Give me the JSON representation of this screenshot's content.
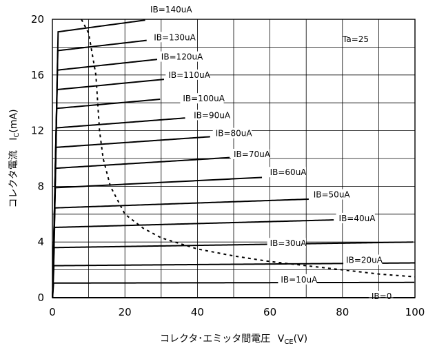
{
  "chart_data": {
    "type": "line",
    "title": "",
    "xlabel": "コレクタ･エミッタ間電圧",
    "xlabel_symbol": "V",
    "xlabel_subscript": "CE",
    "xlabel_unit": "(V)",
    "ylabel": "コレクタ電流",
    "ylabel_symbol": "I",
    "ylabel_subscript": "C",
    "ylabel_unit": "(mA)",
    "xlim": [
      0,
      100
    ],
    "ylim": [
      0,
      20
    ],
    "x_ticks": [
      "0",
      "20",
      "40",
      "60",
      "80",
      "100"
    ],
    "y_ticks": [
      "0",
      "4",
      "8",
      "12",
      "16",
      "20"
    ],
    "grid": true,
    "annotation": "Ta=25",
    "colors": {
      "curve": "#000000",
      "grid": "#000000",
      "background": "#ffffff"
    },
    "series": [
      {
        "name": "IB=0",
        "label_at": [
          88,
          0.0
        ],
        "sat": 0.0,
        "slope": 0.0,
        "xmax": 100
      },
      {
        "name": "IB=10uA",
        "label_at": [
          63,
          1.2
        ],
        "sat": 1.05,
        "slope": 0.0005,
        "xmax": 100
      },
      {
        "name": "IB=20uA",
        "label_at": [
          81,
          2.6
        ],
        "sat": 2.3,
        "slope": 0.002,
        "xmax": 100
      },
      {
        "name": "IB=30uA",
        "label_at": [
          60,
          3.8
        ],
        "sat": 3.6,
        "slope": 0.004,
        "xmax": 100
      },
      {
        "name": "IB=40uA",
        "label_at": [
          79,
          5.6
        ],
        "sat": 5.05,
        "slope": 0.007,
        "xmax": 78
      },
      {
        "name": "IB=50uA",
        "label_at": [
          72,
          7.3
        ],
        "sat": 6.45,
        "slope": 0.009,
        "xmax": 71
      },
      {
        "name": "IB=60uA",
        "label_at": [
          60,
          8.9
        ],
        "sat": 7.9,
        "slope": 0.013,
        "xmax": 58
      },
      {
        "name": "IB=70uA",
        "label_at": [
          50,
          10.2
        ],
        "sat": 9.3,
        "slope": 0.016,
        "xmax": 49
      },
      {
        "name": "IB=80uA",
        "label_at": [
          45,
          11.7
        ],
        "sat": 10.8,
        "slope": 0.018,
        "xmax": 44
      },
      {
        "name": "IB=90uA",
        "label_at": [
          39,
          13.0
        ],
        "sat": 12.2,
        "slope": 0.02,
        "xmax": 37
      },
      {
        "name": "IB=100uA",
        "label_at": [
          36,
          14.2
        ],
        "sat": 13.6,
        "slope": 0.023,
        "xmax": 30
      },
      {
        "name": "IB=110uA",
        "label_at": [
          32,
          15.9
        ],
        "sat": 14.95,
        "slope": 0.025,
        "xmax": 31
      },
      {
        "name": "IB=120uA",
        "label_at": [
          30,
          17.2
        ],
        "sat": 16.35,
        "slope": 0.028,
        "xmax": 29
      },
      {
        "name": "IB=130uA",
        "label_at": [
          28,
          18.6
        ],
        "sat": 17.75,
        "slope": 0.03,
        "xmax": 26
      },
      {
        "name": "IB=140uA",
        "label_at": [
          27,
          20.6
        ],
        "sat": 19.1,
        "slope": 0.035,
        "xmax": 26
      }
    ],
    "power_limit_curve": [
      [
        8,
        20
      ],
      [
        10,
        19
      ],
      [
        12,
        16
      ],
      [
        13,
        12
      ],
      [
        14,
        10
      ],
      [
        16,
        8
      ],
      [
        20,
        6
      ],
      [
        25,
        5
      ],
      [
        30,
        4.3
      ],
      [
        40,
        3.5
      ],
      [
        50,
        3.0
      ],
      [
        60,
        2.6
      ],
      [
        70,
        2.3
      ],
      [
        80,
        2.0
      ],
      [
        90,
        1.7
      ],
      [
        100,
        1.5
      ]
    ]
  }
}
